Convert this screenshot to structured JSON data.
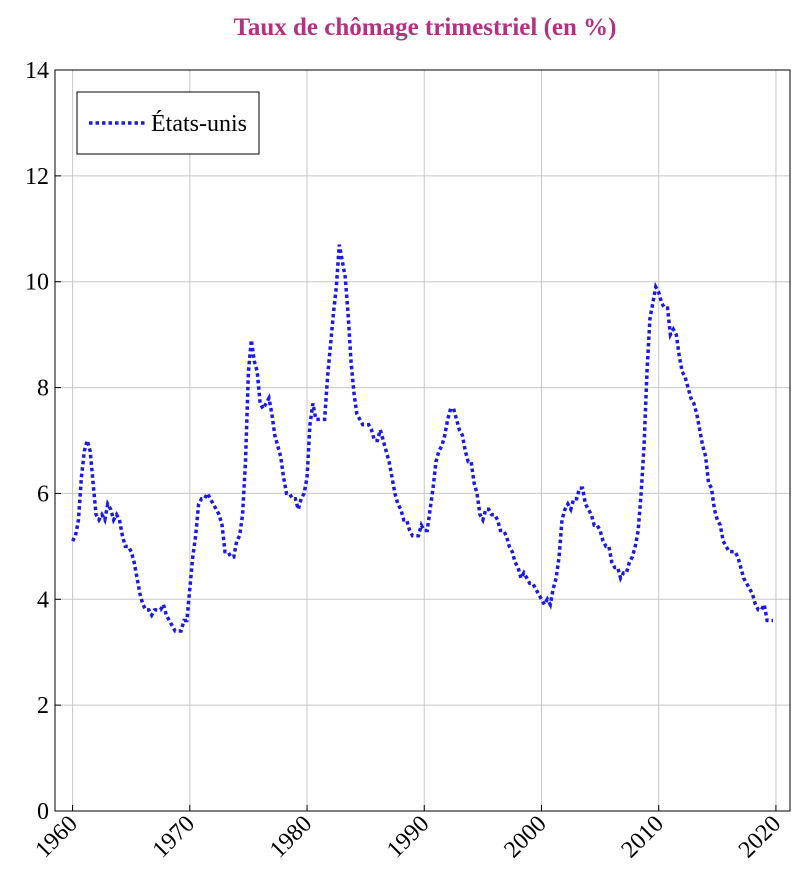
{
  "chart_data": {
    "type": "line",
    "title": "Taux de chômage trimestriel (en %)",
    "title_color": "#b5317f",
    "x": [
      1960,
      1960.25,
      1960.5,
      1960.75,
      1961,
      1961.25,
      1961.5,
      1961.75,
      1962,
      1962.25,
      1962.5,
      1962.75,
      1963,
      1963.25,
      1963.5,
      1963.75,
      1964,
      1964.25,
      1964.5,
      1964.75,
      1965,
      1965.25,
      1965.5,
      1965.75,
      1966,
      1966.25,
      1966.5,
      1966.75,
      1967,
      1967.25,
      1967.5,
      1967.75,
      1968,
      1968.25,
      1968.5,
      1968.75,
      1969,
      1969.25,
      1969.5,
      1969.75,
      1970,
      1970.25,
      1970.5,
      1970.75,
      1971,
      1971.25,
      1971.5,
      1971.75,
      1972,
      1972.25,
      1972.5,
      1972.75,
      1973,
      1973.25,
      1973.5,
      1973.75,
      1974,
      1974.25,
      1974.5,
      1974.75,
      1975,
      1975.25,
      1975.5,
      1975.75,
      1976,
      1976.25,
      1976.5,
      1976.75,
      1977,
      1977.25,
      1977.5,
      1977.75,
      1978,
      1978.25,
      1978.5,
      1978.75,
      1979,
      1979.25,
      1979.5,
      1979.75,
      1980,
      1980.25,
      1980.5,
      1980.75,
      1981,
      1981.25,
      1981.5,
      1981.75,
      1982,
      1982.25,
      1982.5,
      1982.75,
      1983,
      1983.25,
      1983.5,
      1983.75,
      1984,
      1984.25,
      1984.5,
      1984.75,
      1985,
      1985.25,
      1985.5,
      1985.75,
      1986,
      1986.25,
      1986.5,
      1986.75,
      1987,
      1987.25,
      1987.5,
      1987.75,
      1988,
      1988.25,
      1988.5,
      1988.75,
      1989,
      1989.25,
      1989.5,
      1989.75,
      1990,
      1990.25,
      1990.5,
      1990.75,
      1991,
      1991.25,
      1991.5,
      1991.75,
      1992,
      1992.25,
      1992.5,
      1992.75,
      1993,
      1993.25,
      1993.5,
      1993.75,
      1994,
      1994.25,
      1994.5,
      1994.75,
      1995,
      1995.25,
      1995.5,
      1995.75,
      1996,
      1996.25,
      1996.5,
      1996.75,
      1997,
      1997.25,
      1997.5,
      1997.75,
      1998,
      1998.25,
      1998.5,
      1998.75,
      1999,
      1999.25,
      1999.5,
      1999.75,
      2000,
      2000.25,
      2000.5,
      2000.75,
      2001,
      2001.25,
      2001.5,
      2001.75,
      2002,
      2002.25,
      2002.5,
      2002.75,
      2003,
      2003.25,
      2003.5,
      2003.75,
      2004,
      2004.25,
      2004.5,
      2004.75,
      2005,
      2005.25,
      2005.5,
      2005.75,
      2006,
      2006.25,
      2006.5,
      2006.75,
      2007,
      2007.25,
      2007.5,
      2007.75,
      2008,
      2008.25,
      2008.5,
      2008.75,
      2009,
      2009.25,
      2009.5,
      2009.75,
      2010,
      2010.25,
      2010.5,
      2010.75,
      2011,
      2011.25,
      2011.5,
      2011.75,
      2012,
      2012.25,
      2012.5,
      2012.75,
      2013,
      2013.25,
      2013.5,
      2013.75,
      2014,
      2014.25,
      2014.5,
      2014.75,
      2015,
      2015.25,
      2015.5,
      2015.75,
      2016,
      2016.25,
      2016.5,
      2016.75,
      2017,
      2017.25,
      2017.5,
      2017.75,
      2018,
      2018.25,
      2018.5,
      2018.75,
      2019,
      2019.25,
      2019.5,
      2019.75
    ],
    "series": [
      {
        "name": "États-unis",
        "color": "#1a1ae6",
        "values": [
          5.1,
          5.2,
          5.5,
          6.3,
          6.8,
          7.0,
          6.8,
          6.2,
          5.6,
          5.5,
          5.6,
          5.5,
          5.8,
          5.7,
          5.5,
          5.6,
          5.5,
          5.2,
          5.0,
          5.0,
          4.9,
          4.7,
          4.4,
          4.1,
          3.9,
          3.8,
          3.8,
          3.7,
          3.8,
          3.8,
          3.8,
          3.9,
          3.7,
          3.6,
          3.5,
          3.4,
          3.4,
          3.4,
          3.6,
          3.6,
          4.2,
          4.8,
          5.2,
          5.8,
          5.9,
          5.9,
          6.0,
          5.9,
          5.8,
          5.7,
          5.6,
          5.4,
          4.9,
          4.9,
          4.8,
          4.8,
          5.1,
          5.2,
          5.6,
          6.6,
          8.3,
          8.9,
          8.5,
          8.3,
          7.7,
          7.6,
          7.7,
          7.8,
          7.5,
          7.1,
          6.9,
          6.7,
          6.3,
          6.0,
          6.0,
          5.9,
          5.9,
          5.7,
          5.9,
          6.0,
          6.3,
          7.3,
          7.7,
          7.4,
          7.4,
          7.4,
          7.4,
          8.2,
          8.8,
          9.4,
          9.9,
          10.7,
          10.4,
          10.1,
          9.4,
          8.5,
          7.9,
          7.5,
          7.4,
          7.3,
          7.3,
          7.3,
          7.2,
          7.0,
          7.0,
          7.2,
          7.0,
          6.8,
          6.6,
          6.3,
          6.0,
          5.8,
          5.7,
          5.5,
          5.5,
          5.3,
          5.2,
          5.2,
          5.2,
          5.4,
          5.3,
          5.3,
          5.7,
          6.1,
          6.6,
          6.8,
          6.9,
          7.1,
          7.4,
          7.6,
          7.6,
          7.4,
          7.2,
          7.1,
          6.8,
          6.6,
          6.6,
          6.2,
          6.0,
          5.6,
          5.5,
          5.7,
          5.7,
          5.6,
          5.6,
          5.5,
          5.3,
          5.3,
          5.2,
          5.0,
          4.9,
          4.7,
          4.6,
          4.4,
          4.5,
          4.4,
          4.3,
          4.3,
          4.2,
          4.1,
          4.0,
          3.9,
          4.0,
          3.9,
          4.2,
          4.4,
          4.8,
          5.5,
          5.7,
          5.8,
          5.7,
          5.9,
          5.9,
          6.1,
          6.1,
          5.8,
          5.7,
          5.6,
          5.4,
          5.4,
          5.3,
          5.1,
          5.0,
          5.0,
          4.7,
          4.6,
          4.6,
          4.4,
          4.5,
          4.5,
          4.7,
          4.8,
          5.0,
          5.3,
          6.0,
          6.9,
          8.3,
          9.3,
          9.6,
          9.9,
          9.8,
          9.6,
          9.5,
          9.5,
          9.0,
          9.1,
          9.0,
          8.6,
          8.3,
          8.2,
          8.0,
          7.8,
          7.7,
          7.5,
          7.2,
          6.9,
          6.7,
          6.2,
          6.1,
          5.7,
          5.5,
          5.4,
          5.1,
          5.0,
          4.9,
          4.9,
          4.9,
          4.8,
          4.6,
          4.4,
          4.3,
          4.2,
          4.1,
          3.9,
          3.8,
          3.8,
          3.9,
          3.6,
          3.6,
          3.6
        ]
      }
    ],
    "xlim": [
      1958.5,
      2021.2
    ],
    "xticks": [
      1960,
      1970,
      1980,
      1990,
      2000,
      2010,
      2020
    ],
    "ylim": [
      0,
      14
    ],
    "yticks": [
      0,
      2,
      4,
      6,
      8,
      10,
      12,
      14
    ],
    "grid": true,
    "legend": "top-left"
  }
}
